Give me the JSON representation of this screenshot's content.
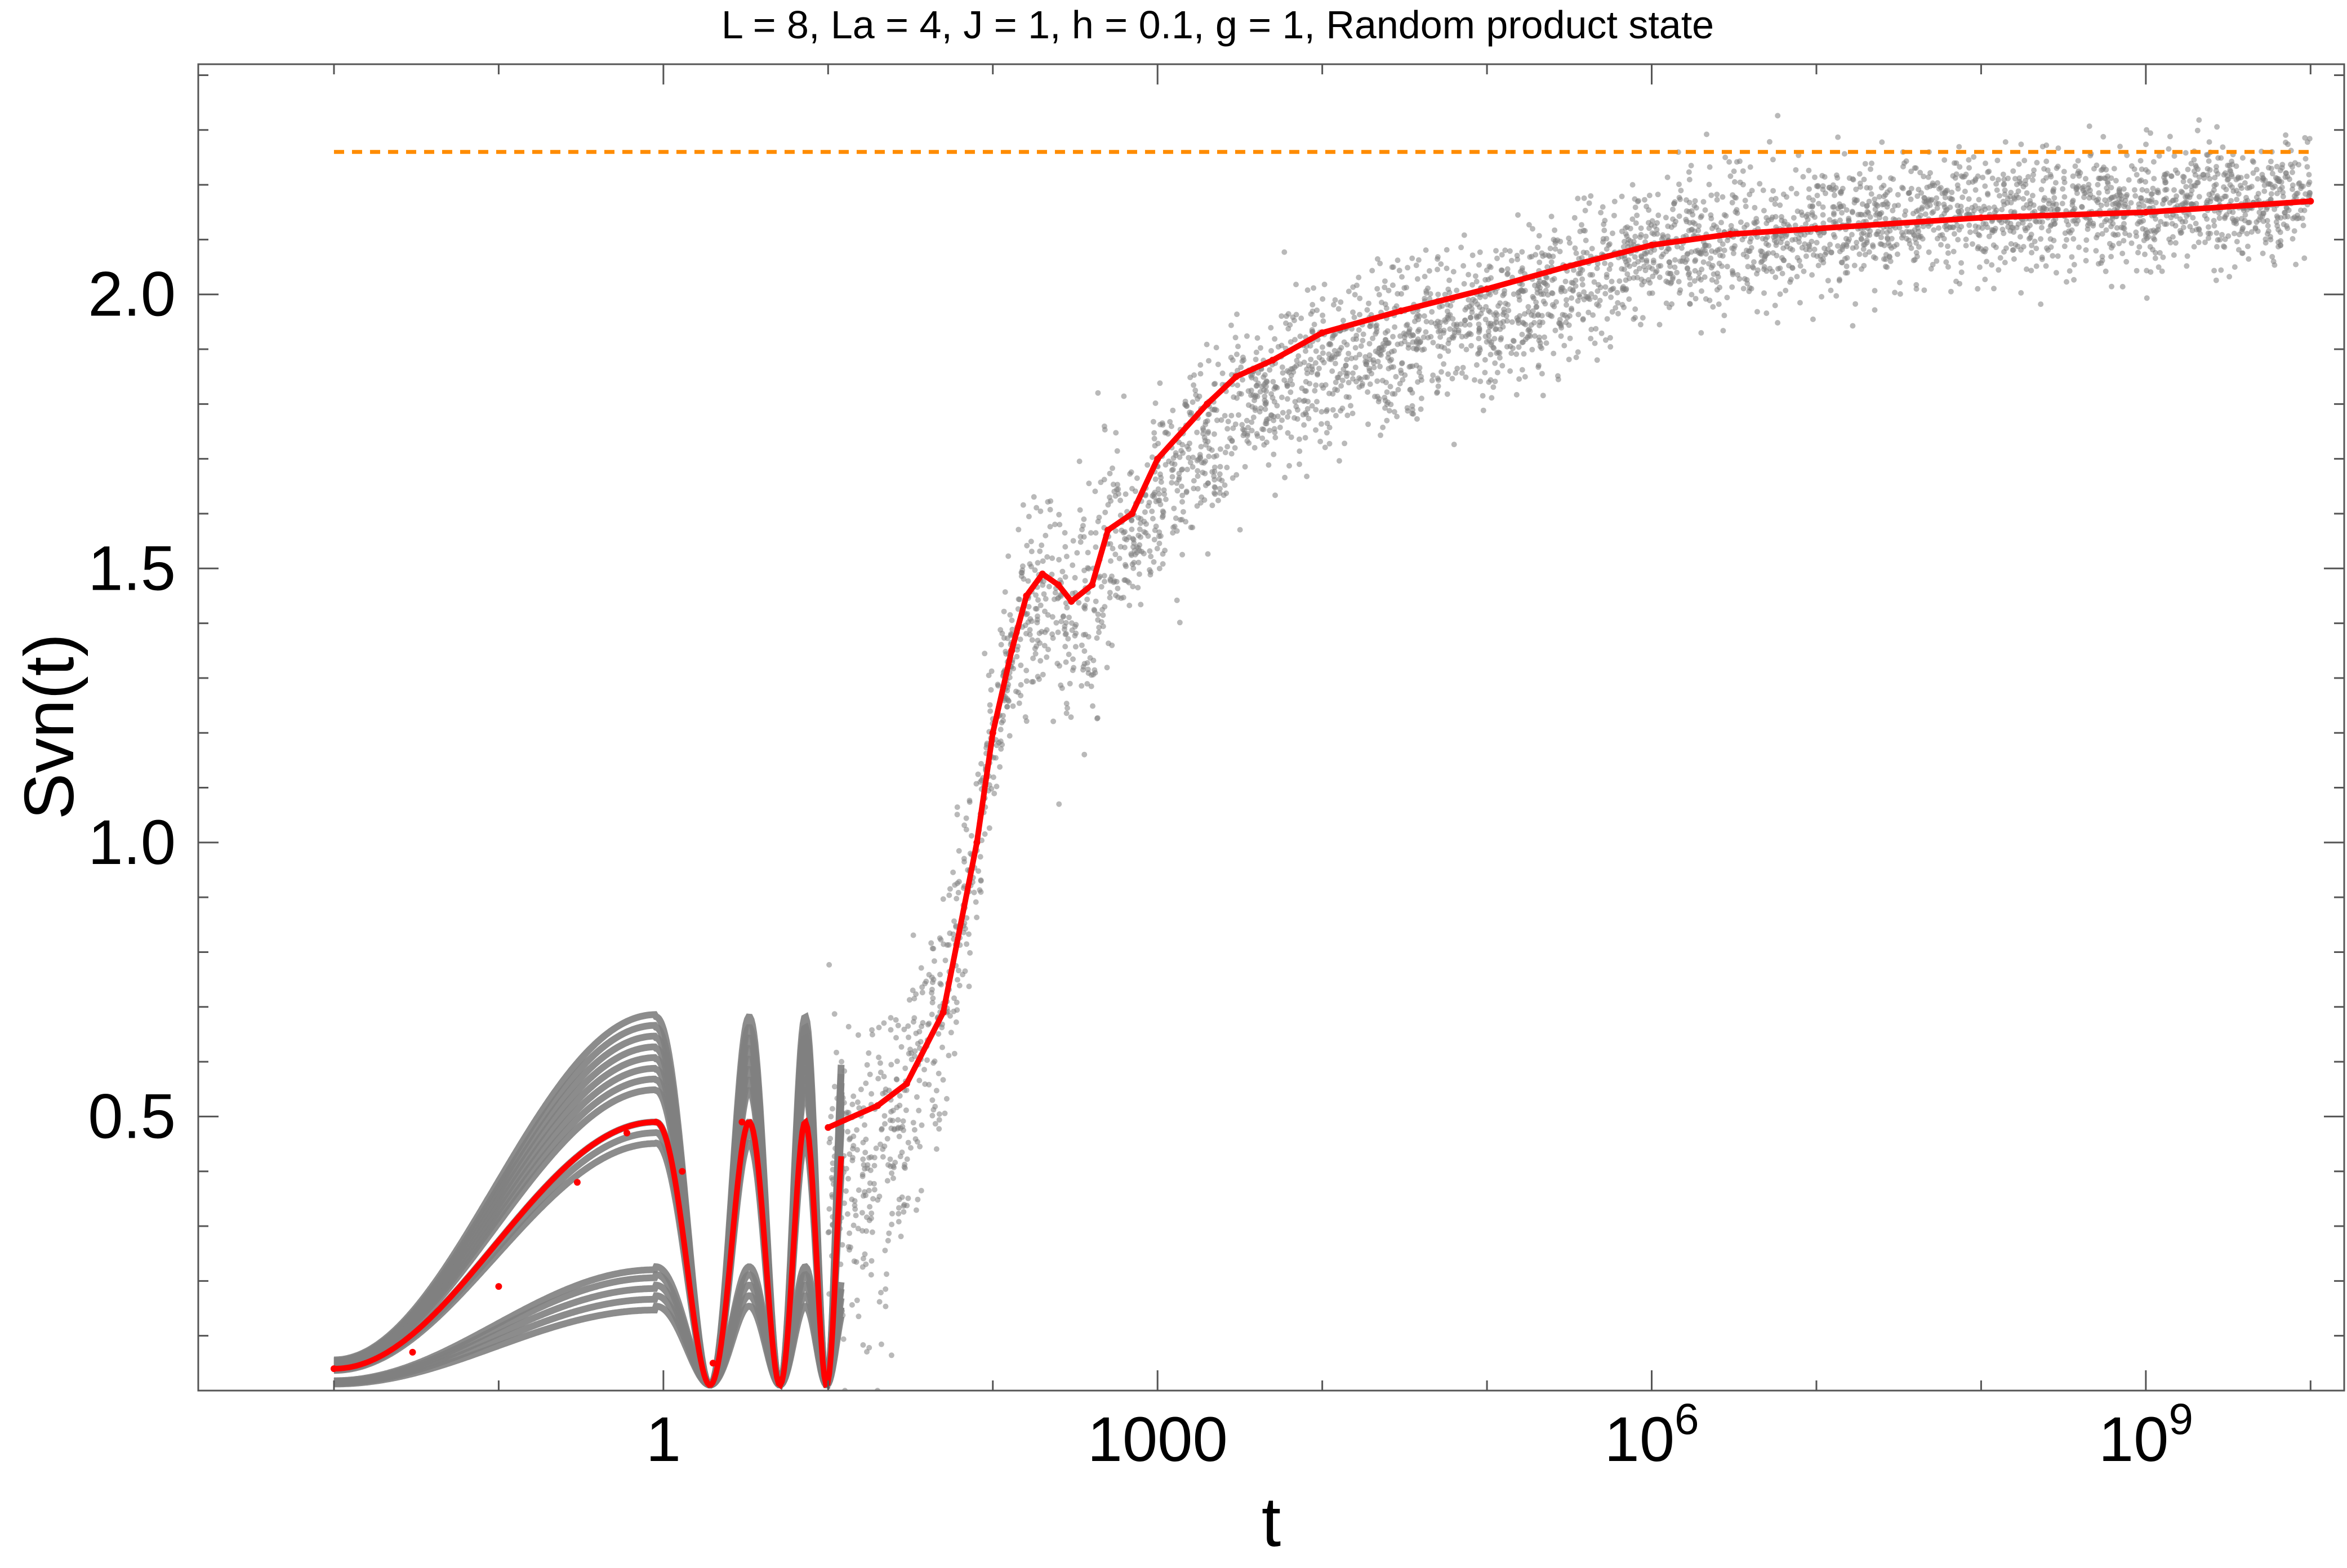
{
  "chart_data": {
    "type": "scatter",
    "title": "L = 8, La = 4, J = 1, h = 0.1, g = 1, Random product state",
    "xlabel": "t",
    "ylabel": "Svn(t)",
    "x_scale": "log",
    "xlim": [
      0.0015,
      16000000000.0
    ],
    "ylim": [
      0,
      2.42
    ],
    "x_ticks": [
      {
        "value": 1,
        "label": "1"
      },
      {
        "value": 1000,
        "label": "1000"
      },
      {
        "value": 1000000,
        "label": "10",
        "sup": "6"
      },
      {
        "value": 1000000000,
        "label": "10",
        "sup": "9"
      }
    ],
    "y_ticks": [
      {
        "value": 0.5,
        "label": "0.5"
      },
      {
        "value": 1.0,
        "label": "1.0"
      },
      {
        "value": 1.5,
        "label": "1.5"
      },
      {
        "value": 2.0,
        "label": "2.0"
      }
    ],
    "grid": false,
    "legend": "none",
    "colors": {
      "samples": "#808080",
      "mean": "#ff0000",
      "reference": "#ff8c00"
    },
    "reference_line": {
      "y": 2.26,
      "style": "dashed"
    },
    "mean_curve": {
      "x": [
        0.01,
        0.03,
        0.1,
        0.3,
        0.6,
        0.9,
        1.3,
        2.0,
        3.0,
        5.0,
        10,
        20,
        30,
        50,
        80,
        100,
        130,
        160,
        200,
        250,
        300,
        400,
        500,
        700,
        1000,
        2000,
        3000,
        5000,
        10000,
        30000,
        100000,
        300000,
        1000000,
        3000000,
        10000000,
        100000000,
        1000000000,
        10000000000
      ],
      "y": [
        0.04,
        0.07,
        0.19,
        0.38,
        0.47,
        0.49,
        0.4,
        0.05,
        0.49,
        0.02,
        0.48,
        0.52,
        0.56,
        0.69,
        1.0,
        1.2,
        1.35,
        1.45,
        1.49,
        1.47,
        1.44,
        1.47,
        1.57,
        1.6,
        1.7,
        1.8,
        1.85,
        1.88,
        1.93,
        1.97,
        2.01,
        2.05,
        2.09,
        2.11,
        2.12,
        2.14,
        2.15,
        2.17
      ]
    },
    "spread_band": {
      "x": [
        10,
        20,
        30,
        50,
        80,
        100,
        130,
        160,
        200,
        300,
        500,
        1000,
        3000,
        10000,
        100000,
        1000000,
        10000000,
        100000000,
        1000000000,
        10000000000
      ],
      "upper": [
        0.7,
        0.72,
        0.8,
        0.95,
        1.2,
        1.35,
        1.55,
        1.65,
        1.7,
        1.65,
        1.75,
        1.8,
        1.95,
        2.03,
        2.1,
        2.2,
        2.25,
        2.27,
        2.28,
        2.29
      ],
      "lower": [
        0.02,
        0.1,
        0.2,
        0.45,
        0.8,
        1.0,
        1.15,
        1.2,
        1.2,
        1.15,
        1.3,
        1.45,
        1.6,
        1.7,
        1.8,
        1.95,
        2.0,
        2.02,
        2.04,
        2.06
      ]
    },
    "early_oscillation_envelope": {
      "sample_peak_max": 0.69,
      "sample_peak_min": 0.14
    }
  }
}
